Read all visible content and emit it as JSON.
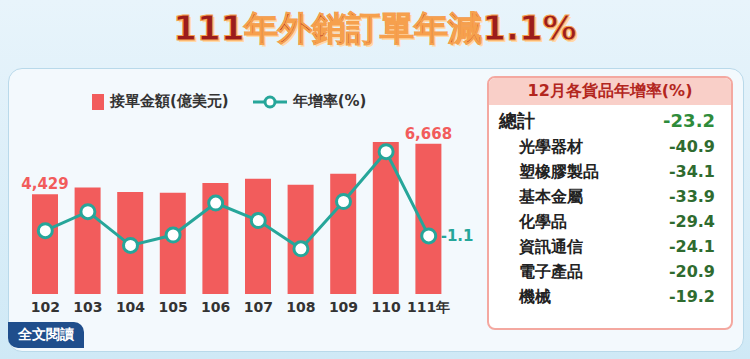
{
  "chart_data": [
    {
      "type": "bar",
      "title": "111年外銷訂單年減1.1%",
      "categories": [
        "102",
        "103",
        "104",
        "105",
        "106",
        "107",
        "108",
        "109",
        "110",
        "111年"
      ],
      "series": [
        {
          "name": "接單金額(億美元)",
          "type": "bar",
          "color": "#f25c5c",
          "values": [
            4429,
            4728,
            4530,
            4493,
            4924,
            5112,
            4846,
            5334,
            6741,
            6668
          ],
          "value_labels": [
            "4,429",
            null,
            null,
            null,
            null,
            null,
            null,
            null,
            null,
            "6,668"
          ]
        },
        {
          "name": "年增率(%)",
          "type": "line",
          "axis": "y2",
          "color": "#26a69a",
          "marker": "circle",
          "values": [
            0.6,
            6.8,
            -4.2,
            -0.8,
            9.6,
            3.9,
            -5.3,
            10.1,
            26.3,
            -1.1
          ],
          "value_labels": [
            null,
            null,
            null,
            null,
            null,
            null,
            null,
            null,
            null,
            "-1.1"
          ]
        }
      ],
      "ylim": [
        0,
        7500
      ],
      "y2lim": [
        -20,
        35
      ],
      "tick_labels": "x",
      "grid": false,
      "annotations": [
        "全文閱讀"
      ]
    },
    {
      "type": "table",
      "title": "12月各貨品年增率(%)",
      "categories": [
        "總計",
        "光學器材",
        "塑橡膠製品",
        "基本金屬",
        "化學品",
        "資訊通信",
        "電子產品",
        "機械"
      ],
      "values": [
        -23.2,
        -40.9,
        -34.1,
        -33.9,
        -29.4,
        -24.1,
        -20.9,
        -19.2
      ]
    }
  ]
}
